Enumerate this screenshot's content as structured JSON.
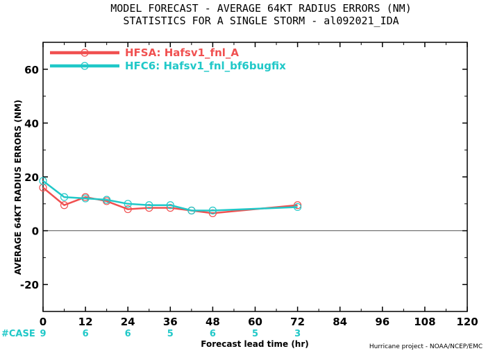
{
  "chart_data": {
    "type": "line",
    "title": "MODEL FORECAST - AVERAGE 64KT RADIUS ERRORS (NM)",
    "subtitle": "STATISTICS FOR A SINGLE STORM - al092021_IDA",
    "xlabel": "Forecast lead time (hr)",
    "ylabel": "AVERAGE 64KT RADIUS ERRORS (NM)",
    "xlim": [
      0,
      120
    ],
    "ylim": [
      -30,
      70
    ],
    "xticks": [
      0,
      12,
      24,
      36,
      48,
      60,
      72,
      84,
      96,
      108,
      120
    ],
    "yticks": [
      -20,
      0,
      20,
      40,
      60
    ],
    "grid": false,
    "legend_position": "top-left",
    "series": [
      {
        "name": "HFSA: Hafsv1_fnl_A",
        "color": "#f05050",
        "x": [
          0,
          6,
          12,
          18,
          24,
          30,
          36,
          42,
          48,
          72
        ],
        "y": [
          16,
          9.5,
          12.5,
          11,
          8,
          8.5,
          8.5,
          7.5,
          6.5,
          9.5
        ]
      },
      {
        "name": "HFC6: Hafsv1_fnl_bf6bugfix",
        "color": "#20c8c8",
        "x": [
          0,
          6,
          12,
          18,
          24,
          30,
          36,
          42,
          48,
          72
        ],
        "y": [
          18.5,
          12.5,
          12,
          11.5,
          10,
          9.5,
          9.5,
          7.5,
          7.5,
          8.8
        ]
      }
    ],
    "cases": {
      "label": "#CASE",
      "x": [
        0,
        12,
        24,
        36,
        48,
        60,
        72
      ],
      "values": [
        "9",
        "6",
        "6",
        "5",
        "6",
        "5",
        "3"
      ]
    },
    "credit": "Hurricane project - NOAA/NCEP/EMC"
  }
}
